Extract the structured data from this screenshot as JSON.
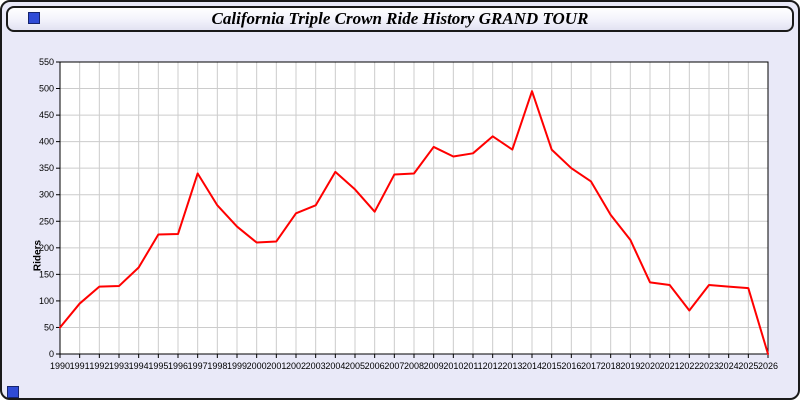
{
  "window": {
    "title": "California Triple Crown Ride History GRAND TOUR"
  },
  "colors": {
    "background": "#e9e9f8",
    "line": "#ff0000",
    "grid": "#cccccc",
    "plot_background": "#ffffff",
    "handle": "#2f4bd6"
  },
  "chart_data": {
    "type": "line",
    "title": "California Triple Crown Ride History GRAND TOUR",
    "xlabel": "",
    "ylabel": "Riders",
    "ylim": [
      0,
      550
    ],
    "ytick_step": 50,
    "grid": true,
    "legend": false,
    "line_color": "#ff0000",
    "grid_color": "#cccccc",
    "x": [
      1990,
      1991,
      1992,
      1993,
      1994,
      1995,
      1996,
      1997,
      1998,
      1999,
      2000,
      2001,
      2002,
      2003,
      2004,
      2005,
      2006,
      2007,
      2008,
      2009,
      2010,
      2011,
      2012,
      2013,
      2014,
      2015,
      2016,
      2017,
      2018,
      2019,
      2020,
      2021,
      2022,
      2023,
      2024,
      2025,
      2026
    ],
    "values": [
      50,
      95,
      127,
      128,
      163,
      225,
      226,
      340,
      280,
      240,
      210,
      212,
      265,
      280,
      343,
      310,
      268,
      338,
      340,
      390,
      372,
      378,
      410,
      385,
      495,
      385,
      350,
      325,
      262,
      215,
      135,
      130,
      82,
      130,
      127,
      124,
      0
    ]
  }
}
